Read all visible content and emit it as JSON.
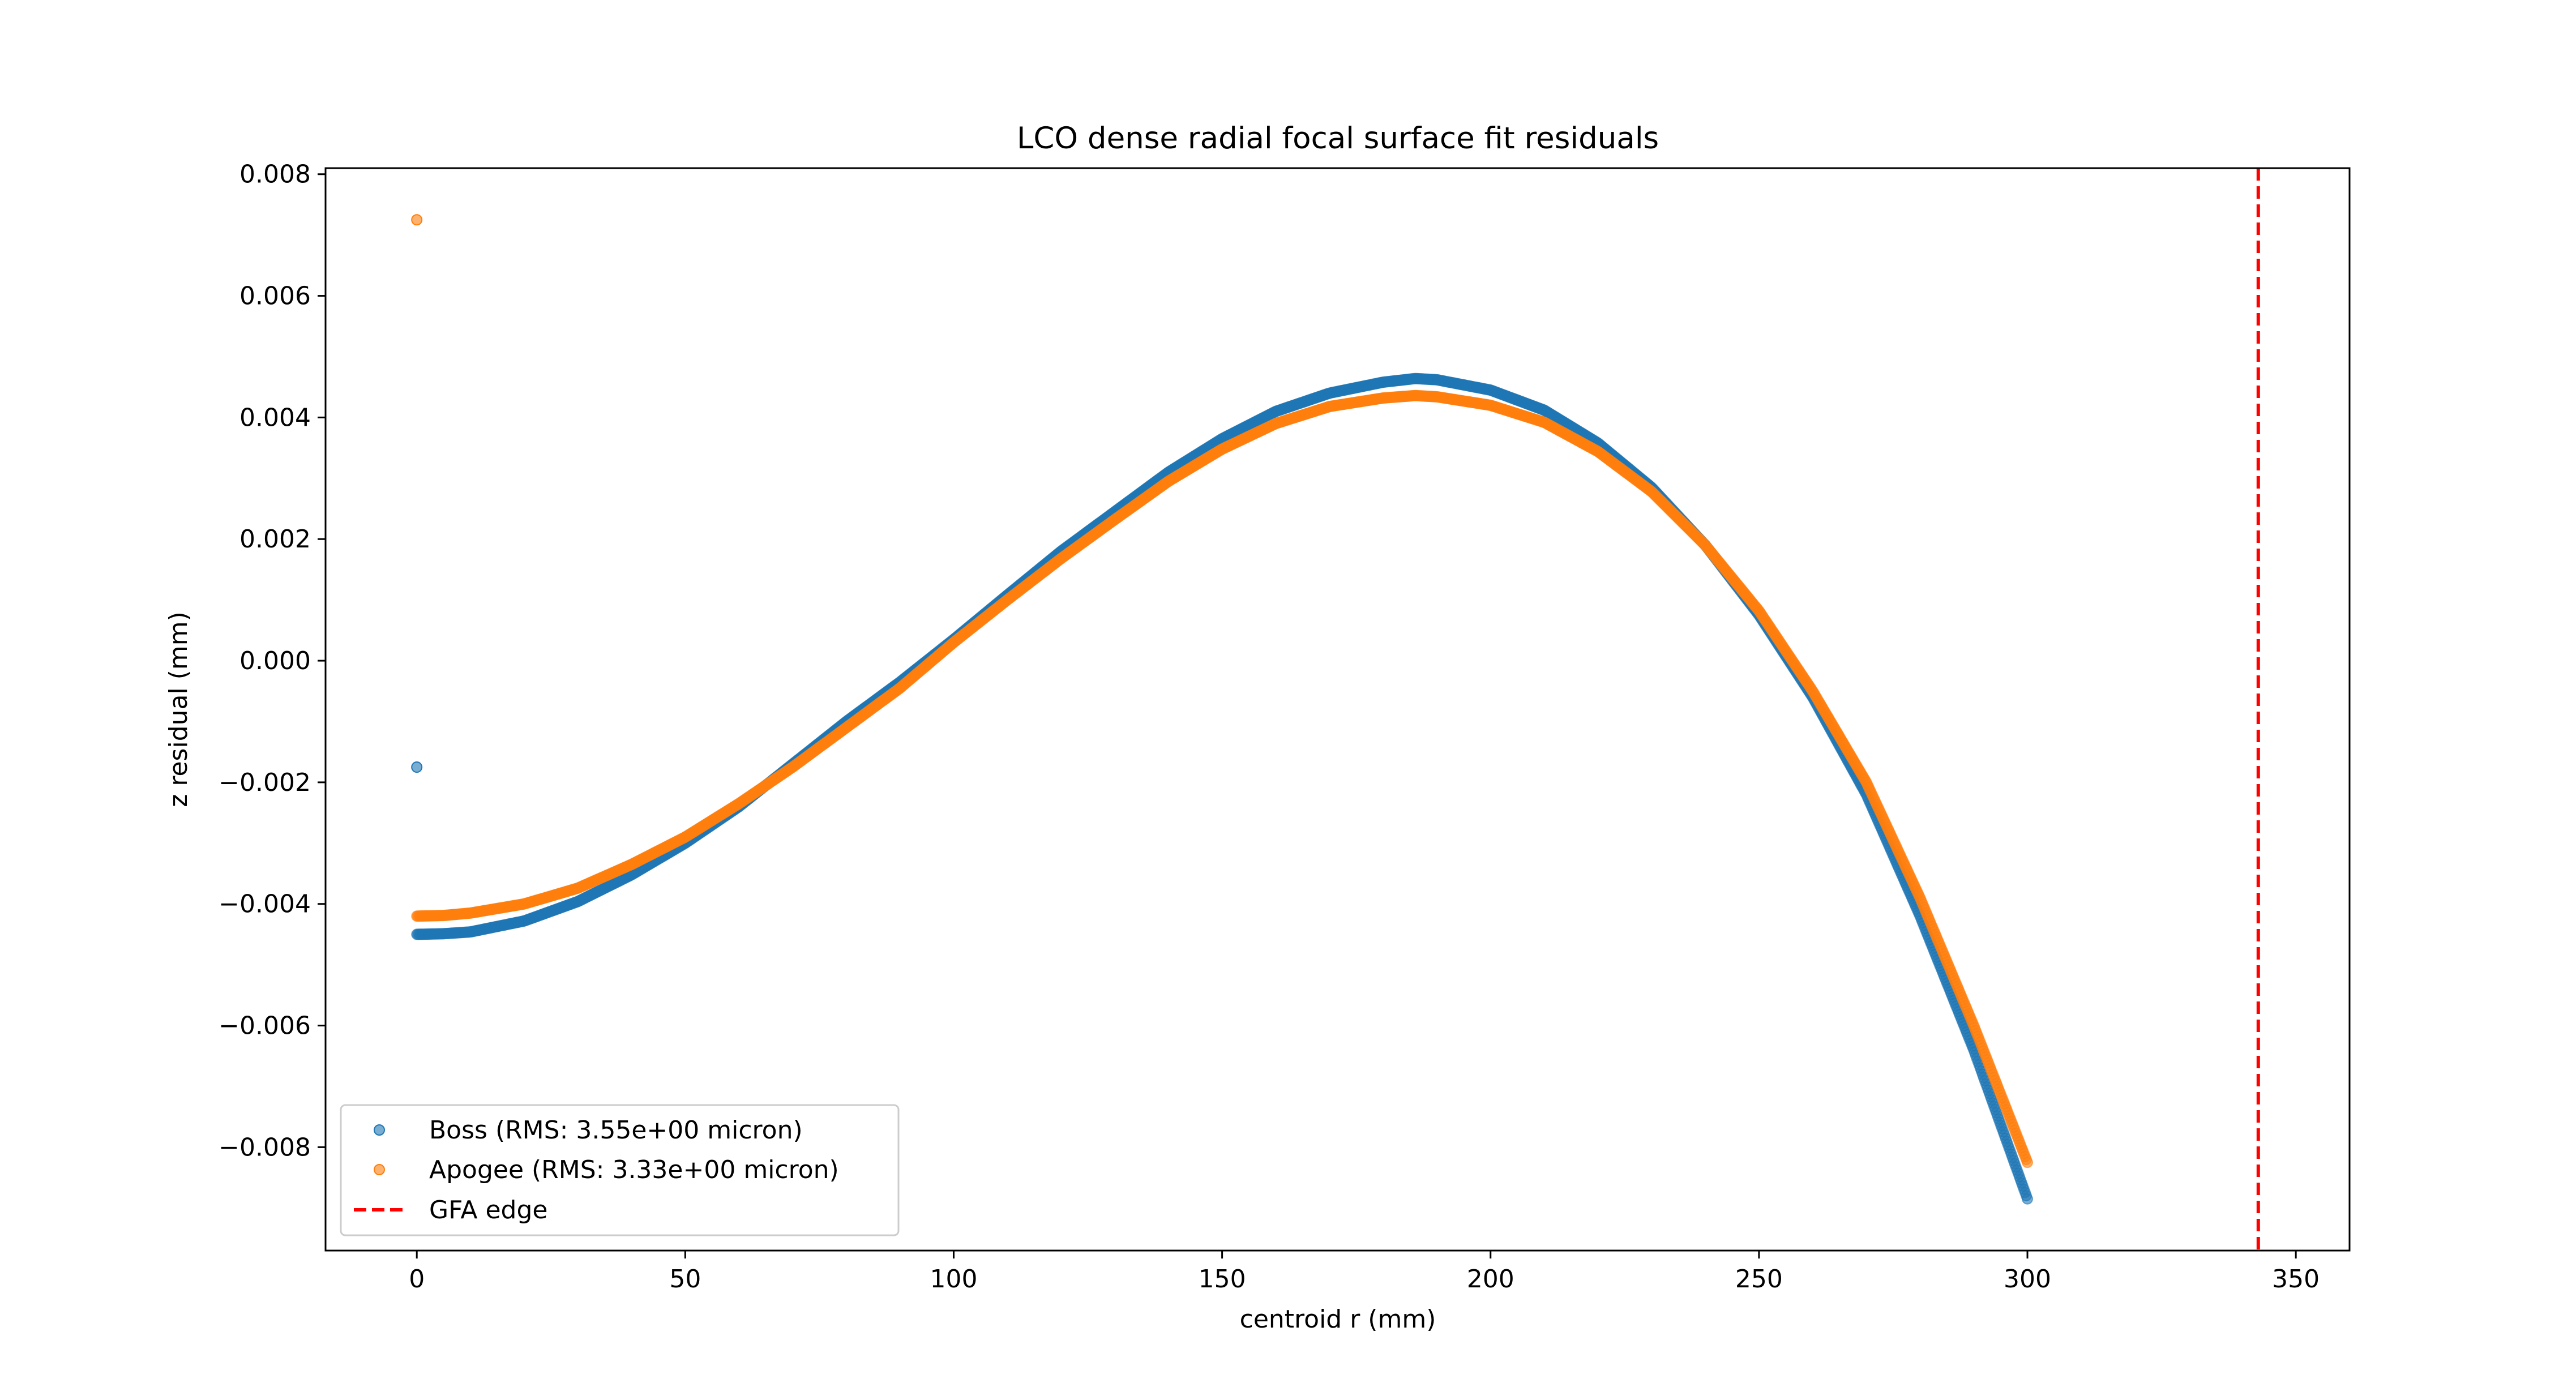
{
  "chart_data": {
    "type": "scatter",
    "title": "LCO dense radial focal surface fit residuals",
    "xlabel": "centroid r (mm)",
    "ylabel": "z residual (mm)",
    "xlim": [
      -17,
      360
    ],
    "ylim": [
      -0.0097,
      0.0081
    ],
    "xticks": [
      0,
      50,
      100,
      150,
      200,
      250,
      300,
      350
    ],
    "xtick_labels": [
      "0",
      "50",
      "100",
      "150",
      "200",
      "250",
      "300",
      "350"
    ],
    "yticks": [
      -0.008,
      -0.006,
      -0.004,
      -0.002,
      0.0,
      0.002,
      0.004,
      0.006,
      0.008
    ],
    "ytick_labels": [
      "−0.008",
      "−0.006",
      "−0.004",
      "−0.002",
      "0.000",
      "0.002",
      "0.004",
      "0.006",
      "0.008"
    ],
    "grid": false,
    "legend_position": "lower-left",
    "series": [
      {
        "name": "Boss (RMS: 3.55e+00 micron)",
        "color": "#1f77b4",
        "marker": "circle",
        "x": [
          0,
          5,
          10,
          20,
          30,
          40,
          50,
          60,
          70,
          80,
          90,
          100,
          110,
          120,
          130,
          140,
          150,
          160,
          170,
          180,
          186,
          190,
          200,
          210,
          220,
          230,
          240,
          250,
          260,
          270,
          280,
          290,
          300
        ],
        "y": [
          -0.0045,
          -0.00449,
          -0.00446,
          -0.00428,
          -0.00396,
          -0.00352,
          -0.003,
          -0.0024,
          -0.0017,
          -0.001,
          -0.00035,
          0.00035,
          0.00108,
          0.0018,
          0.00245,
          0.0031,
          0.00365,
          0.0041,
          0.0044,
          0.00458,
          0.00464,
          0.00462,
          0.00445,
          0.00412,
          0.00358,
          0.00285,
          0.0019,
          0.00075,
          -0.0006,
          -0.0022,
          -0.0042,
          -0.0064,
          -0.00885
        ]
      },
      {
        "name": "Apogee (RMS: 3.33e+00 micron)",
        "color": "#ff7f0e",
        "marker": "circle",
        "x": [
          0,
          5,
          10,
          20,
          30,
          40,
          50,
          60,
          70,
          80,
          90,
          100,
          110,
          120,
          130,
          140,
          150,
          160,
          170,
          180,
          186,
          190,
          200,
          210,
          220,
          230,
          240,
          250,
          260,
          270,
          280,
          290,
          300
        ],
        "y": [
          -0.0042,
          -0.00419,
          -0.00415,
          -0.004,
          -0.00374,
          -0.00335,
          -0.0029,
          -0.00235,
          -0.00175,
          -0.0011,
          -0.00045,
          0.0003,
          0.001,
          0.00168,
          0.00232,
          0.00295,
          0.00348,
          0.0039,
          0.00418,
          0.00432,
          0.00436,
          0.00434,
          0.0042,
          0.00392,
          0.00344,
          0.00278,
          0.0019,
          0.00082,
          -0.0005,
          -0.002,
          -0.0039,
          -0.006,
          -0.00825
        ]
      }
    ],
    "outliers": [
      {
        "series": "Boss (RMS: 3.55e+00 micron)",
        "x": 0,
        "y": -0.00175
      },
      {
        "series": "Apogee (RMS: 3.33e+00 micron)",
        "x": 0,
        "y": 0.00725
      }
    ],
    "vline": {
      "name": "GFA edge",
      "x": 343,
      "color": "#ff0000",
      "style": "dashed"
    }
  }
}
